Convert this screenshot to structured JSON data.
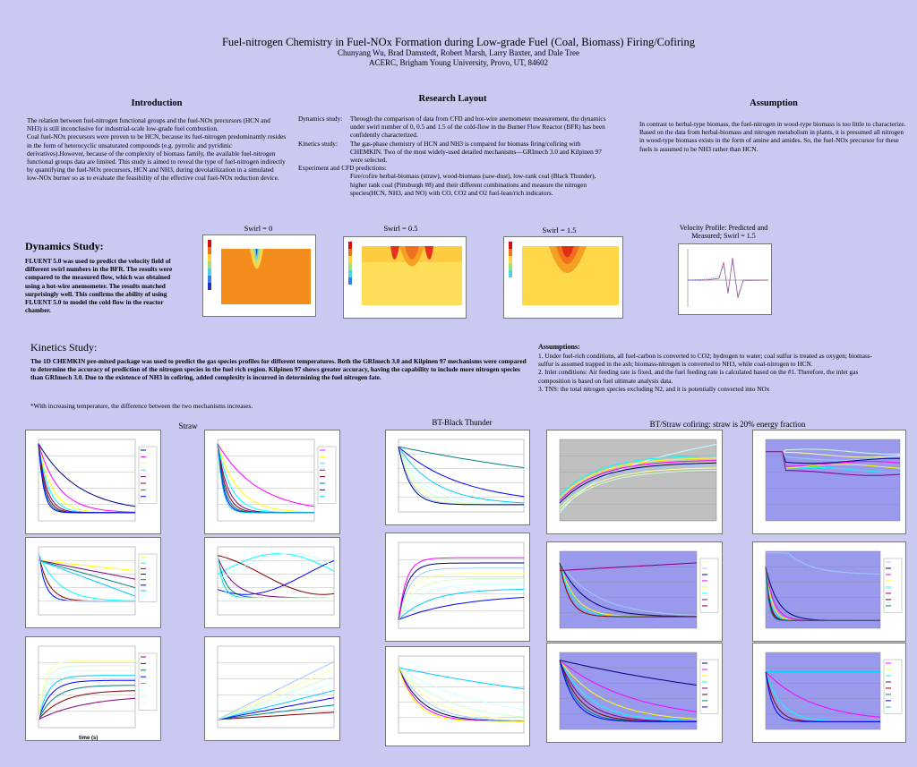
{
  "header": {
    "title": "Fuel-nitrogen Chemistry in Fuel-NOx Formation during Low-grade Fuel (Coal, Biomass) Firing/Cofiring",
    "authors": "Chunyang Wu, Brad Damstedt, Robert Marsh, Larry Baxter, and Dale Tree",
    "affiliation": "ACERC, Brigham Young University, Provo, UT, 84602"
  },
  "introduction": {
    "heading": "Introduction",
    "p1": "The relation between fuel-nitrogen functional groups and the fuel-NOx precursors (HCN and NH3) is still inconclusive for industrial-scale low-grade fuel combustion.",
    "p2": "Coal fuel-NOx precursors were proven to be HCN, because its fuel-nitrogen predominantly resides in the form of heterocyclic unsaturated compounds (e.g. pyrrolic and pyridinic derivatives).However, because of the complexity of biomass family, the available fuel-nitrogen functional groups data are limited. This study is aimed to reveal the type of fuel-nitrogen indirectly by quantifying the fuel-NOx precursors, HCN and NH3, during devolatilization in a simulated low-NOx burner so as to evaluate the feasibility of the effective coal fuel-NOx reduction device."
  },
  "research_layout": {
    "heading": "Research Layout",
    "dyn_label": "Dynamics study:",
    "dyn_text": "Through the comparison of data from CFD and hot-wire anemometer measurement, the dynamics under swirl number of 0, 0.5 and 1.5 of the cold-flow in the Burner Flow Reactor (BFR) has been confidently characterized.",
    "kin_label": "Kinetics study:",
    "kin_text": "The gas-phase chemistry of HCN and NH3 is compared for biomass firing/cofiring with CHEMKIN. Two of the most widely-used detailed mechanisms—GRImech 3.0 and Kilpinen 97 were selected.",
    "exp_label": "Experiment and CFD predictions:",
    "exp_text": "Fire/cofire herbal-biomass (straw), wood-biomass (saw-dust), low-rank coal (Black Thunder), higher rank coal (Pittsburgh #8) and their different combinations and measure the nitrogen species(HCN, NH3, and NO) with CO, CO2 and O2 fuel-lean/rich indicators."
  },
  "assumption": {
    "heading": "Assumption",
    "text": "In contrast to herbal-type biomass, the fuel-nitrogen in wood-type biomass is too little to characterize.  Based on the data from herbal-biomass and nitrogen metabolism in plants, it is presumed all nitrogen in wood-type biomass exists in the form of amine and amides. So, the fuel-NOx precursor for these fuels is assumed to be NH3 rather than HCN."
  },
  "dynamics": {
    "heading": "Dynamics Study:",
    "text": "FLUENT 5.0 was used to predict the velocity field of different swirl numbers in the BFR.   The results were compared to the measured flow, which was obtained using a hot-wire anemometer. The results matched surprisingly well.  This confirms the ability of using FLUENT 5.0 to model the cold flow in the reactor chamber.",
    "swirl0": "Swirl = 0",
    "swirl05": "Swirl = 0.5",
    "swirl15": "Swirl = 1.5",
    "velocity_caption": "Velocity Profile: Predicted and Measured; Swirl = 1.5"
  },
  "kinetics": {
    "heading": "Kinetics Study:",
    "text": "The 1D CHEMKIN pre-mixed package was used to predict the gas species profiles for different temperatures.  Both the GRImech 3.0 and Kilpinen 97 mechanisms were compared to determine the accuracy of prediction of the nitrogen species in the fuel rich region.  Kilpinen 97 shows greater accuracy, having the capability to include more nitrogen species than GRImech 3.0.  Due to the existence of NH3 in cofiring, added complexity is incurred in determining the fuel nitrogen fate.",
    "note": "*With increasing temperature, the difference between the two mechanisms increases.",
    "cap_straw": "Straw",
    "cap_bt": "BT-Black Thunder",
    "cap_cofire": "BT/Straw cofiring: straw is 20% energy fraction"
  },
  "assumptions": {
    "heading": "Assumptions:",
    "item1": "1.   Under fuel-rich conditions, all fuel-carbon is converted to CO2; hydrogen to water; coal sulfur is treated as oxygen; biomass-sulfur is assumed trapped in the ash; biomass-nitrogen is converted to NH3, while coal-nitrogen to HCN.",
    "item2": "2.   Inlet conditions: Air feeding rate is fixed, and the fuel feeding rate is calculated based on the #1.  Therefore, the inlet gas composition is based on fuel ultimate analysis data.",
    "item3": "3.   TNS: the total nitrogen species excluding N2, and it is potentially converted into NOx"
  },
  "colors": {
    "background": "#c9c9f2",
    "chart_gray": "#c0c0c0",
    "chart_blue": "#9999ee",
    "cfd_orange": "#f5a623",
    "cfd_red": "#e03010",
    "cfd_yellow": "#ffe070"
  },
  "chart_labels": {
    "time_s": "time (s)"
  }
}
